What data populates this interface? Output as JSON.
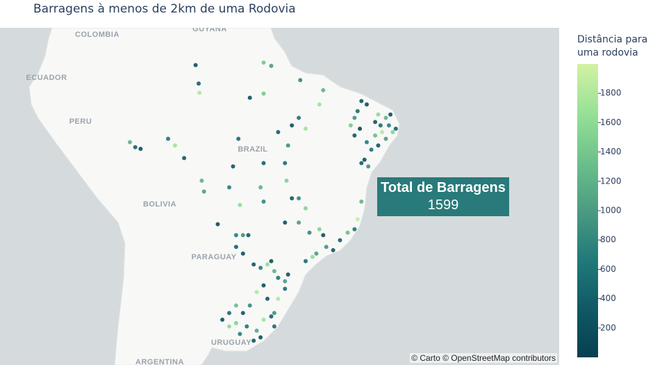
{
  "chart_data": {
    "type": "scatter_map",
    "title": "Barragens à menos de 2km de uma Rodovia",
    "colorbar_title": "Distância para uma rodovia",
    "clim": [
      0,
      2000
    ],
    "cticks": [
      200,
      400,
      600,
      800,
      1000,
      1200,
      1400,
      1600,
      1800
    ],
    "colorscale": [
      "#074050",
      "#105965",
      "#217a79",
      "#4c9b82",
      "#6cc08b",
      "#97e196",
      "#d3f2a3"
    ],
    "annotation": {
      "title": "Total de Barragens",
      "value": 1599
    },
    "attribution": "© Carto © OpenStreetMap contributors",
    "place_labels": [
      "COLOMBIA",
      "GUYANA",
      "ECUADOR",
      "PERU",
      "BRAZIL",
      "BOLIVIA",
      "PARAGUAY",
      "URUGUAY",
      "ARGENTINA"
    ],
    "lon": [
      -39.6,
      -38.9,
      -40.1,
      -40.5,
      -37.4,
      -36.4,
      -36.0,
      -35.5,
      -35.1,
      -37.8,
      -36.9,
      -36.4,
      -37.4,
      -38.3,
      -39.2,
      -39.6,
      -38.7,
      -40.5,
      -41.0,
      -39.8,
      -35.8,
      -37.1,
      -37.8,
      -38.9,
      -39.6,
      -40.1,
      -40.5,
      -41.4,
      -42.4,
      -43.3,
      -44.2,
      -45.1,
      -44.6,
      -46.0,
      -46.9,
      -45.5,
      -48.7,
      -47.8,
      -46.9,
      -49.2,
      -49.6,
      -49.4,
      -48.7,
      -47.8,
      -50.5,
      -56.4,
      -56.9,
      -55.5,
      -52.4,
      -52.8,
      -52.4,
      -49.6,
      -47.8,
      -46.9,
      -46.4,
      -54.2,
      -52.4,
      -51.4,
      -52.4,
      -47.6,
      -44.6,
      -45.1,
      -61.3,
      -60.9,
      -60.8,
      -69.9,
      -69.2,
      -68.5,
      -64.9,
      -64.0,
      -62.8,
      -60.5,
      -60.2,
      -58.4,
      -55.7,
      -56.0,
      -55.1,
      -54.4,
      -56.0,
      -55.1,
      -53.7,
      -52.8,
      -51.9,
      -51.4,
      -51.0,
      -50.5,
      -49.6,
      -52.4,
      -53.3,
      -54.2,
      -55.1,
      -56.0,
      -56.9,
      -57.8,
      -56.0,
      -54.6,
      -53.3,
      -52.8,
      -52.4,
      -51.4,
      -51.0,
      -51.9,
      -50.5,
      -49.6,
      -49.2,
      -56.9,
      -55.5,
      -53.7,
      -51.0
    ],
    "lat": [
      -4.3,
      -4.7,
      -5.5,
      -6.3,
      -5.9,
      -6.3,
      -7.2,
      -8.0,
      -7.6,
      -6.8,
      -8.0,
      -8.8,
      -9.6,
      -10.1,
      -11.3,
      -11.7,
      -12.1,
      -8.4,
      -7.2,
      -7.6,
      -5.9,
      -7.2,
      -8.4,
      -9.2,
      -16.3,
      -18.4,
      -19.6,
      -20.0,
      -20.9,
      -22.1,
      -21.7,
      -19.6,
      -20.3,
      -22.9,
      -23.4,
      -22.5,
      -7.2,
      -6.3,
      -7.6,
      -9.6,
      -11.7,
      -13.8,
      -15.9,
      -15.9,
      -8.0,
      -12.1,
      -14.6,
      -16.7,
      -11.7,
      -14.6,
      -16.3,
      -18.8,
      -18.8,
      -17.1,
      -20.0,
      -3.9,
      -3.4,
      -0.1,
      0.3,
      -1.8,
      -3.0,
      -4.7,
      0.0,
      -2.2,
      -3.3,
      -9.2,
      -9.8,
      -10.0,
      -8.8,
      -9.6,
      -11.1,
      -13.8,
      -15.1,
      -19.0,
      -8.8,
      -20.3,
      -20.3,
      -20.3,
      -21.7,
      -22.5,
      -23.8,
      -24.2,
      -23.8,
      -23.4,
      -24.6,
      -25.4,
      -25.8,
      -26.3,
      -27.1,
      -28.7,
      -29.6,
      -28.7,
      -29.6,
      -30.4,
      -30.8,
      -31.2,
      -31.7,
      -32.5,
      -30.4,
      -30.0,
      -29.6,
      -27.9,
      -27.9,
      -26.7,
      -25.0,
      -31.2,
      -32.1,
      -32.9,
      -31.2
    ],
    "values": [
      300,
      200,
      500,
      900,
      1600,
      1200,
      700,
      1500,
      400,
      300,
      1800,
      1000,
      300,
      600,
      200,
      400,
      900,
      300,
      1400,
      100,
      200,
      500,
      1300,
      700,
      1200,
      1900,
      600,
      1300,
      400,
      300,
      900,
      1500,
      200,
      1600,
      500,
      1000,
      200,
      600,
      1700,
      900,
      500,
      1500,
      300,
      800,
      400,
      300,
      700,
      1600,
      400,
      1200,
      800,
      200,
      1000,
      1500,
      800,
      200,
      1400,
      1000,
      1400,
      800,
      1200,
      1700,
      200,
      400,
      1800,
      1200,
      400,
      200,
      600,
      1700,
      300,
      1200,
      1000,
      200,
      500,
      700,
      900,
      300,
      400,
      200,
      300,
      700,
      1600,
      200,
      1200,
      600,
      1000,
      200,
      1800,
      800,
      300,
      1300,
      500,
      200,
      1500,
      600,
      1100,
      200,
      1700,
      400,
      900,
      300,
      1800,
      500,
      200,
      1600,
      700,
      300,
      500
    ]
  }
}
